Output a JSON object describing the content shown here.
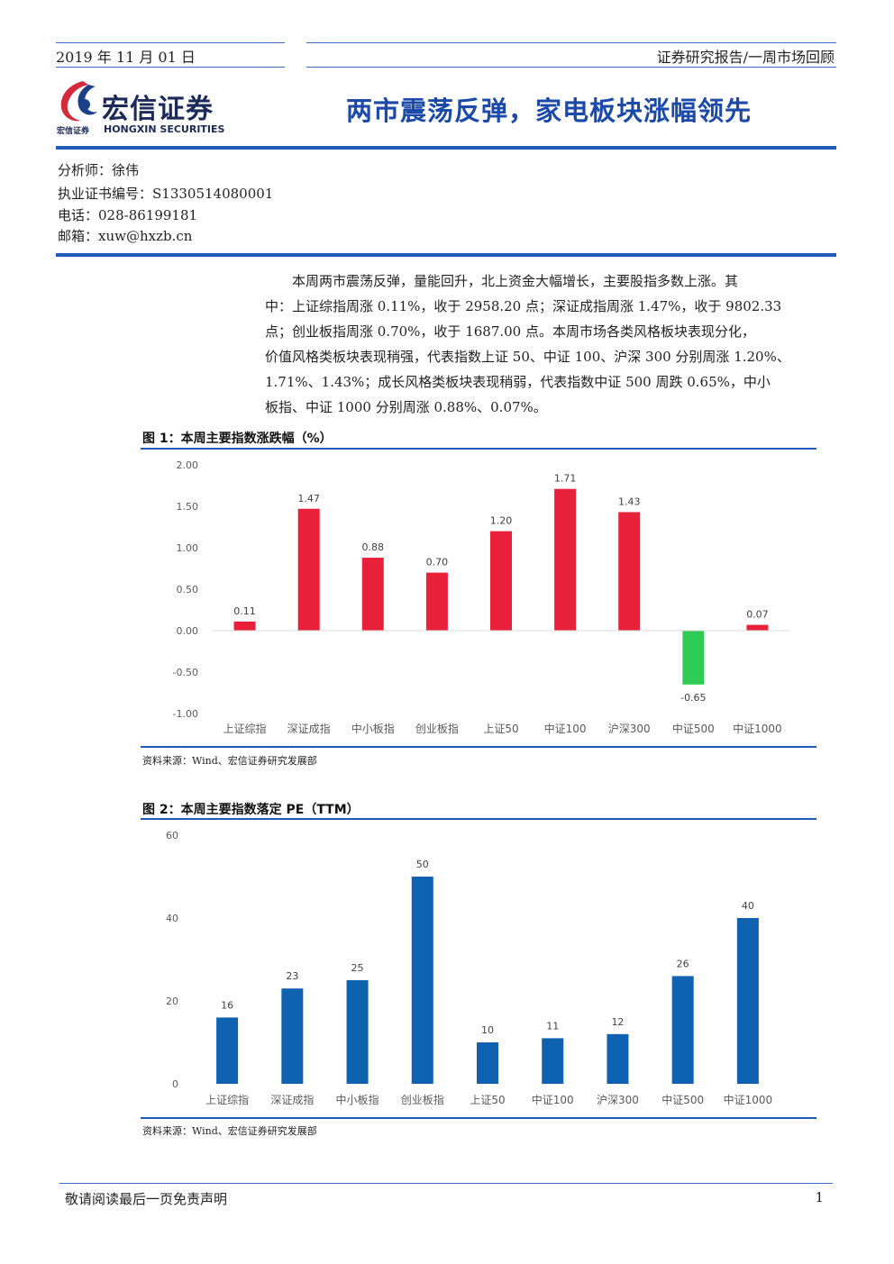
{
  "header": {
    "date": "2019 年 11 月 01 日",
    "report_type": "证券研究报告/一周市场回顾"
  },
  "logo": {
    "name": "宏信证券",
    "sub_cn": "宏信证券",
    "sub_en": "HONGXIN SECURITIES"
  },
  "title": "两市震荡反弹，家电板块涨幅领先",
  "analyst": {
    "name": "分析师：徐伟",
    "cert": "执业证书编号：S1330514080001",
    "phone": "电话：028-86199181",
    "email": "邮箱：xuw@hxzb.cn"
  },
  "summary_lines": [
    "本周两市震荡反弹，量能回升，北上资金大幅增长，主要股指多数上涨。其",
    "中：上证综指周涨 0.11%，收于 2958.20 点；深证成指周涨 1.47%，收于 9802.33",
    "点；创业板指周涨 0.70%，收于 1687.00 点。本周市场各类风格板块表现分化，",
    "价值风格类板块表现稍强，代表指数上证 50、中证 100、沪深 300 分别周涨 1.20%、",
    "1.71%、1.43%；成长风格类板块表现稍弱，代表指数中证 500 周跌 0.65%，中小",
    "板指、中证 1000 分别周涨 0.88%、0.07%。"
  ],
  "figure1": {
    "title": "图 1：本周主要指数涨跌幅（%）",
    "source": "资料来源：Wind、宏信证券研究发展部"
  },
  "figure2": {
    "title": "图 2：本周主要指数落定 PE（TTM）",
    "source": "资料来源：Wind、宏信证券研究发展部"
  },
  "chart_data": [
    {
      "type": "bar",
      "title": "图 1：本周主要指数涨跌幅（%）",
      "categories": [
        "上证综指",
        "深证成指",
        "中小板指",
        "创业板指",
        "上证50",
        "中证100",
        "沪深300",
        "中证500",
        "中证1000"
      ],
      "values": [
        0.11,
        1.47,
        0.88,
        0.7,
        1.2,
        1.71,
        1.43,
        -0.65,
        0.07
      ],
      "data_labels": [
        "0.11",
        "1.47",
        "0.88",
        "0.70",
        "1.20",
        "1.71",
        "1.43",
        "-0.65",
        "0.07"
      ],
      "yticks": [
        "2.00",
        "1.50",
        "1.00",
        "0.50",
        "0.00",
        "-0.50",
        "-1.00"
      ],
      "ylim": [
        -1.0,
        2.0
      ],
      "grid": false,
      "colors": {
        "positive": "#e8203a",
        "negative": "#2ecc55"
      }
    },
    {
      "type": "bar",
      "title": "图 2：本周主要指数落定 PE（TTM）",
      "categories": [
        "上证综指",
        "深证成指",
        "中小板指",
        "创业板指",
        "上证50",
        "中证100",
        "沪深300",
        "中证500",
        "中证1000"
      ],
      "values": [
        16,
        23,
        25,
        50,
        10,
        11,
        12,
        26,
        40
      ],
      "data_labels": [
        "16",
        "23",
        "25",
        "50",
        "10",
        "11",
        "12",
        "26",
        "40"
      ],
      "yticks": [
        "60",
        "40",
        "20",
        "0"
      ],
      "ylim": [
        0,
        60
      ],
      "grid": false,
      "colors": {
        "bar": "#0f62b0"
      }
    }
  ],
  "footer": {
    "disclaimer": "敬请阅读最后一页免责声明",
    "page_number": "1"
  }
}
